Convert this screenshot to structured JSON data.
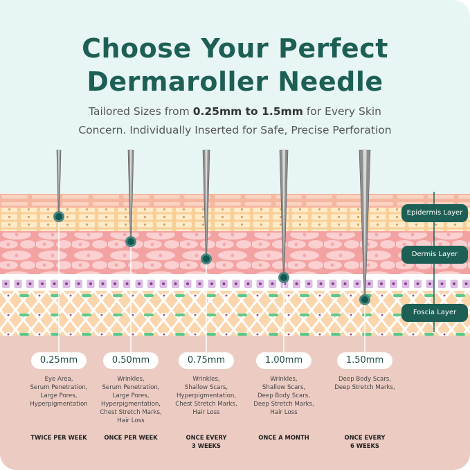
{
  "header": {
    "title_line1": "Choose Your Perfect",
    "title_line2": "Dermaroller Needle",
    "subtitle_pre": "Tailored Sizes from ",
    "subtitle_bold": "0.25mm to 1.5mm",
    "subtitle_post": " for Every Skin",
    "subtitle_line2": "Concern. Individually Inserted for Safe, Precise Perforation"
  },
  "layers": [
    "Epidermis Layer",
    "Dermis Layer",
    "Foscia Layer"
  ],
  "needles": [
    {
      "size": "0.25mm",
      "uses": [
        "Eye Area,",
        "Serum Penetration,",
        "Large Pores,",
        "Hyperpigmentation"
      ],
      "frequency": [
        "TWICE PER WEEK"
      ]
    },
    {
      "size": "0.50mm",
      "uses": [
        "Wrinkles,",
        "Serum Penetration,",
        "Large Pores,",
        "Hyperpigmentation,",
        "Chest Stretch Marks,",
        "Hair Loss"
      ],
      "frequency": [
        "ONCE PER WEEK"
      ]
    },
    {
      "size": "0.75mm",
      "uses": [
        "Wrinkles,",
        "Shallow Scars,",
        "Hyperpigmentation,",
        "Chest Stretch Marks,",
        "Hair Loss"
      ],
      "frequency": [
        "ONCE EVERY",
        "3 WEEKS"
      ]
    },
    {
      "size": "1.00mm",
      "uses": [
        "Wrinkles,",
        "Shallow Scars,",
        "Deep Body Scars,",
        "Deep Stretch Marks,",
        "Hair Loss"
      ],
      "frequency": [
        "ONCE A MONTH"
      ]
    },
    {
      "size": "1.50mm",
      "uses": [
        "Deep Body Scars,",
        "Deep Stretch Marks,"
      ],
      "frequency": [
        "ONCE EVERY",
        "6 WEEKS"
      ]
    }
  ],
  "colors": {
    "brand": "#1d5f55",
    "epidermis": "#fbd7a4",
    "dermis": "#f3a6a6",
    "basal": "#d9b8e0",
    "fascia": "#fbd6ad",
    "bottom": "#ebcbc2"
  }
}
